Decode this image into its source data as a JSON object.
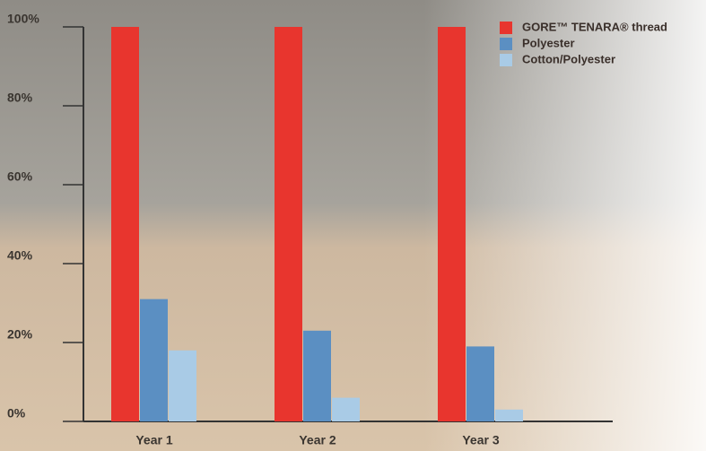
{
  "chart_data": {
    "type": "bar",
    "categories": [
      "Year 1",
      "Year 2",
      "Year 3"
    ],
    "series": [
      {
        "name": "GORE™ TENARA® thread",
        "color": "#e8352e",
        "values": [
          100,
          100,
          100
        ]
      },
      {
        "name": "Polyester",
        "color": "#5b8fc2",
        "values": [
          31,
          23,
          19
        ]
      },
      {
        "name": "Cotton/Polyester",
        "color": "#a9cbe6",
        "values": [
          18,
          6,
          3
        ]
      }
    ],
    "ylim": [
      0,
      100
    ],
    "yticks": [
      {
        "value": 0,
        "label": "0%"
      },
      {
        "value": 20,
        "label": "20%"
      },
      {
        "value": 40,
        "label": "40%"
      },
      {
        "value": 60,
        "label": "60%"
      },
      {
        "value": 80,
        "label": "80%"
      },
      {
        "value": 100,
        "label": "100%"
      }
    ],
    "legend": "upper right"
  }
}
